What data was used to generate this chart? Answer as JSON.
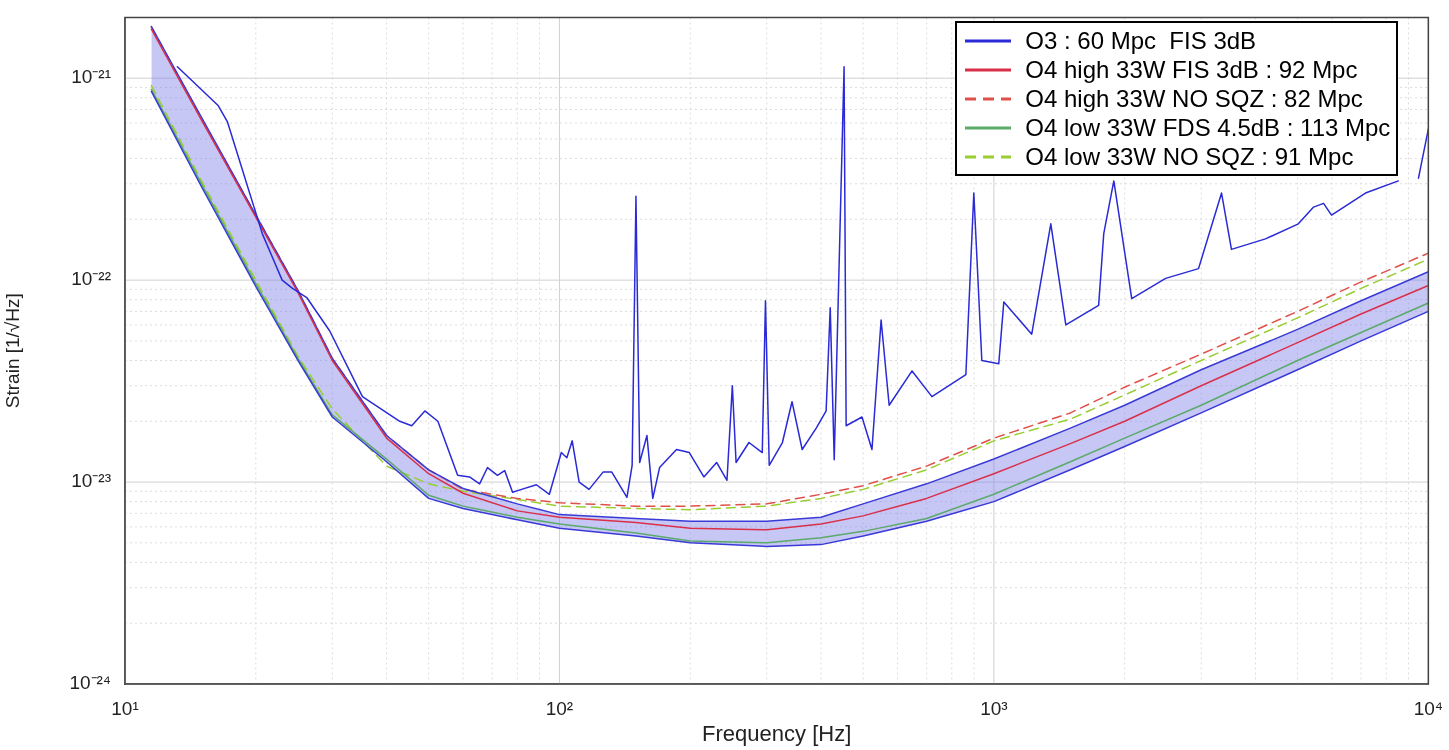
{
  "chart_data": {
    "type": "line",
    "xlabel": "Frequency [Hz]",
    "ylabel": "Strain [1/√Hz]",
    "log": "xy",
    "grid": true,
    "legend": "top right",
    "marker": "none",
    "xlim": [
      10,
      10000
    ],
    "ylim": [
      1e-24,
      2e-21
    ],
    "xticks": [
      {
        "value": 10,
        "label": "10¹"
      },
      {
        "value": 20,
        "label": null
      },
      {
        "value": 30,
        "label": null
      },
      {
        "value": 40,
        "label": null
      },
      {
        "value": 50,
        "label": null
      },
      {
        "value": 60,
        "label": null
      },
      {
        "value": 70,
        "label": null
      },
      {
        "value": 80,
        "label": null
      },
      {
        "value": 90,
        "label": null
      },
      {
        "value": 100,
        "label": "10²"
      },
      {
        "value": 200,
        "label": null
      },
      {
        "value": 300,
        "label": null
      },
      {
        "value": 400,
        "label": null
      },
      {
        "value": 500,
        "label": null
      },
      {
        "value": 600,
        "label": null
      },
      {
        "value": 700,
        "label": null
      },
      {
        "value": 800,
        "label": null
      },
      {
        "value": 900,
        "label": null
      },
      {
        "value": 1000,
        "label": "10³"
      },
      {
        "value": 2000,
        "label": null
      },
      {
        "value": 3000,
        "label": null
      },
      {
        "value": 4000,
        "label": null
      },
      {
        "value": 5000,
        "label": null
      },
      {
        "value": 6000,
        "label": null
      },
      {
        "value": 7000,
        "label": null
      },
      {
        "value": 8000,
        "label": null
      },
      {
        "value": 9000,
        "label": null
      },
      {
        "value": 10000,
        "label": "10⁴"
      }
    ],
    "yticks": [
      {
        "value": 1e-24,
        "label": "10⁻²⁴"
      },
      {
        "value": 2e-24,
        "label": null
      },
      {
        "value": 3e-24,
        "label": null
      },
      {
        "value": 4e-24,
        "label": null
      },
      {
        "value": 5e-24,
        "label": null
      },
      {
        "value": 6e-24,
        "label": null
      },
      {
        "value": 7e-24,
        "label": null
      },
      {
        "value": 8e-24,
        "label": null
      },
      {
        "value": 9e-24,
        "label": null
      },
      {
        "value": 1e-23,
        "label": "10⁻²³"
      },
      {
        "value": 2e-23,
        "label": null
      },
      {
        "value": 3e-23,
        "label": null
      },
      {
        "value": 4e-23,
        "label": null
      },
      {
        "value": 5e-23,
        "label": null
      },
      {
        "value": 6e-23,
        "label": null
      },
      {
        "value": 7e-23,
        "label": null
      },
      {
        "value": 8e-23,
        "label": null
      },
      {
        "value": 9e-23,
        "label": null
      },
      {
        "value": 1e-22,
        "label": "10⁻²²"
      },
      {
        "value": 2e-22,
        "label": null
      },
      {
        "value": 3e-22,
        "label": null
      },
      {
        "value": 4e-22,
        "label": null
      },
      {
        "value": 5e-22,
        "label": null
      },
      {
        "value": 6e-22,
        "label": null
      },
      {
        "value": 7e-22,
        "label": null
      },
      {
        "value": 8e-22,
        "label": null
      },
      {
        "value": 9e-22,
        "label": null
      },
      {
        "value": 1e-21,
        "label": "10⁻²¹"
      }
    ],
    "x": [
      11.5,
      15,
      20,
      25,
      30,
      40,
      50,
      60,
      80,
      100,
      150,
      200,
      300,
      400,
      500,
      700,
      1000,
      1500,
      2000,
      3000,
      5000,
      7000,
      10000
    ],
    "series": [
      {
        "name": "O3 : 60 Mpc  FIS 3dB",
        "color": "#2a2ad6",
        "x": [
          13.2,
          16.4,
          17.2,
          20.7,
          23.0,
          24.3,
          26.2,
          29.6,
          35.2,
          42.9,
          45.7,
          49.0,
          52.5,
          58.3,
          62.1,
          65.5,
          68.3,
          72.0,
          74.8,
          78.0,
          81.8,
          88.5,
          94.8,
          101,
          104,
          107,
          111,
          117,
          126,
          132,
          143,
          147,
          150,
          153,
          159,
          164,
          170,
          186,
          199,
          215,
          230,
          243,
          250,
          255,
          273,
          293,
          298,
          304,
          326,
          343,
          362,
          390,
          411,
          420,
          429,
          452,
          457,
          497,
          524,
          550,
          574,
          648,
          720,
          862,
          899,
          938,
          1026,
          1054,
          1222,
          1352,
          1464,
          1742,
          1790,
          1888,
          2076,
          2485,
          2958,
          3342,
          3522,
          4217,
          5021,
          5443,
          5738,
          5986,
          7166,
          8531,
          9250,
          9490,
          10000
        ],
        "values": [
          1.14e-21,
          7.3e-22,
          6.1e-22,
          1.7e-22,
          1e-22,
          9.1e-23,
          8.2e-23,
          5.6e-23,
          2.65e-23,
          2e-23,
          1.9e-23,
          2.25e-23,
          2e-23,
          1.08e-23,
          1.06e-23,
          9.8e-24,
          1.18e-23,
          1.08e-23,
          1.14e-23,
          8.9e-24,
          9.2e-24,
          9.7e-24,
          8.7e-24,
          1.4e-23,
          1.32e-23,
          1.6e-23,
          1e-23,
          9.2e-24,
          1.12e-23,
          1.12e-23,
          8.4e-24,
          1.21e-23,
          2.6e-22,
          1.25e-23,
          1.7e-23,
          8.3e-24,
          1.18e-23,
          1.45e-23,
          1.4e-23,
          1.06e-23,
          1.25e-23,
          1.02e-23,
          3e-23,
          1.25e-23,
          1.57e-23,
          1.4e-23,
          7.9e-23,
          1.21e-23,
          1.57e-23,
          2.5e-23,
          1.45e-23,
          1.85e-23,
          2.25e-23,
          7.3e-23,
          1.29e-23,
          1.14e-21,
          1.9e-23,
          2.1e-23,
          1.45e-23,
          6.35e-23,
          2.4e-23,
          3.55e-23,
          2.65e-23,
          3.4e-23,
          2.7e-22,
          4e-23,
          3.85e-23,
          7.8e-23,
          5.4e-23,
          1.9e-22,
          6e-23,
          7.5e-23,
          1.7e-22,
          3.1e-22,
          8.1e-23,
          1.02e-22,
          1.14e-22,
          2.7e-22,
          1.42e-22,
          1.6e-22,
          1.9e-22,
          2.3e-22,
          2.4e-22,
          2.1e-22,
          2.7e-22,
          3.1e-22,
          null,
          3.2e-22,
          5.6e-22
        ]
      },
      {
        "name": "O4 high 33W FIS 3dB : 92 Mpc",
        "color": "#d9304a",
        "values": [
          1.75e-21,
          6.2e-22,
          2.05e-22,
          8.7e-23,
          4e-23,
          1.65e-23,
          1.1e-23,
          8.8e-24,
          7.2e-24,
          6.7e-24,
          6.3e-24,
          5.9e-24,
          5.8e-24,
          6.2e-24,
          6.8e-24,
          8.3e-24,
          1.1e-23,
          1.55e-23,
          2e-23,
          3e-23,
          4.9e-23,
          6.8e-23,
          9.4e-23
        ],
        "lower": [
          8.6e-22,
          2.9e-22,
          9.3e-23,
          4e-23,
          2.1e-23,
          1.26e-23,
          8.3e-24,
          7.4e-24,
          6.5e-24,
          5.9e-24,
          5.4e-24,
          5e-24,
          4.8e-24,
          4.9e-24,
          5.4e-24,
          6.4e-24,
          8e-24,
          1.15e-23,
          1.5e-23,
          2.2e-23,
          3.6e-23,
          5e-23,
          7e-23
        ],
        "upper": [
          1.8e-21,
          6.4e-22,
          2.1e-22,
          8.9e-23,
          4.1e-23,
          1.7e-23,
          1.15e-23,
          9.3e-24,
          7.8e-24,
          6.9e-24,
          6.6e-24,
          6.4e-24,
          6.4e-24,
          6.7e-24,
          7.8e-24,
          9.8e-24,
          1.3e-23,
          1.85e-23,
          2.4e-23,
          3.6e-23,
          5.7e-23,
          7.9e-23,
          1.1e-22
        ]
      },
      {
        "color": "#3a3ad6",
        "values": [
          8.6e-22,
          2.9e-22,
          9.3e-23,
          4e-23,
          2.1e-23,
          1.26e-23,
          8.3e-24,
          7.4e-24,
          6.5e-24,
          5.9e-24,
          5.4e-24,
          5e-24,
          4.8e-24,
          4.9e-24,
          5.4e-24,
          6.4e-24,
          8e-24,
          1.15e-23,
          1.5e-23,
          2.2e-23,
          3.6e-23,
          5e-23,
          7e-23
        ]
      },
      {
        "color": "#3a3ad6",
        "values": [
          1.8e-21,
          6.4e-22,
          2.1e-22,
          8.9e-23,
          4.1e-23,
          1.7e-23,
          1.15e-23,
          9.3e-24,
          7.8e-24,
          6.9e-24,
          6.6e-24,
          6.4e-24,
          6.4e-24,
          6.7e-24,
          7.8e-24,
          9.8e-24,
          1.3e-23,
          1.85e-23,
          2.4e-23,
          3.6e-23,
          5.7e-23,
          7.9e-23,
          1.1e-22
        ]
      },
      {
        "name": "O4 high 33W NO SQZ : 82 Mpc",
        "color": "#e0504a",
        "line_style": "dashed",
        "values": [
          1.8e-21,
          6.3e-22,
          2.1e-22,
          8.9e-23,
          4.1e-23,
          1.7e-23,
          1.15e-23,
          9.2e-24,
          8.3e-24,
          7.9e-24,
          7.6e-24,
          7.6e-24,
          7.8e-24,
          8.7e-24,
          9.6e-24,
          1.2e-23,
          1.65e-23,
          2.2e-23,
          2.95e-23,
          4.3e-23,
          7e-23,
          9.8e-23,
          1.36e-22
        ]
      },
      {
        "name": "O4 low 33W FDS 4.5dB : 113 Mpc",
        "color": "#5aaa6a",
        "values": [
          8.8e-22,
          3e-22,
          9.6e-23,
          4.1e-23,
          2.15e-23,
          1.3e-23,
          8.6e-24,
          7.6e-24,
          6.7e-24,
          6.2e-24,
          5.6e-24,
          5.1e-24,
          5e-24,
          5.3e-24,
          5.7e-24,
          6.6e-24,
          8.7e-24,
          1.26e-23,
          1.65e-23,
          2.4e-23,
          4e-23,
          5.5e-23,
          7.7e-23
        ]
      },
      {
        "name": "O4 low 33W NO SQZ : 91 Mpc",
        "color": "#9acd32",
        "line_style": "dashed",
        "values": [
          9.2e-22,
          3.1e-22,
          1e-22,
          4.2e-23,
          2.3e-23,
          1.2e-23,
          9.8e-24,
          9e-24,
          8.2e-24,
          7.6e-24,
          7.4e-24,
          7.3e-24,
          7.6e-24,
          8.3e-24,
          9.2e-24,
          1.15e-23,
          1.6e-23,
          2.05e-23,
          2.7e-23,
          4e-23,
          6.5e-23,
          9.1e-23,
          1.27e-22
        ]
      }
    ]
  }
}
